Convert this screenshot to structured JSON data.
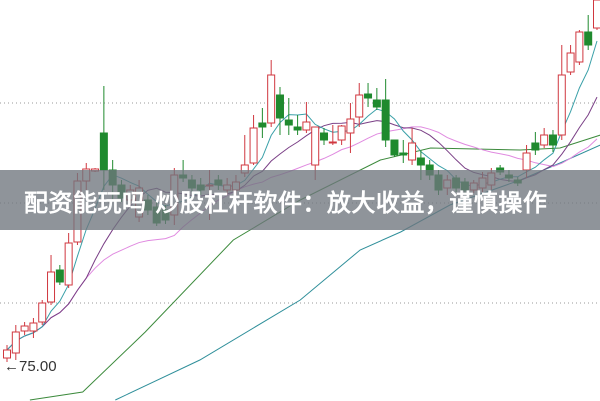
{
  "banner": {
    "title": "配资能玩吗 炒股杠杆软件：放大收益，谨慎操作"
  },
  "chart_data": {
    "type": "candlestick",
    "title": "",
    "xlabel": "",
    "ylabel": "",
    "ylim": [
      71.7,
      111.8
    ],
    "grid": true,
    "gridlines": [
      101.5,
      91.5,
      81.5
    ],
    "colors": {
      "up": "#d0373f",
      "down": "#1f8a2e",
      "ma5": "#3aa0a8",
      "ma10": "#7a3f86",
      "ma20": "#e08ae0",
      "ma60": "#3c8a3c",
      "ma120": "#2f8f9a",
      "grid": "#9a9a9a"
    },
    "low_marker": {
      "label": "75.00",
      "value": 75.0,
      "arrow": "left"
    },
    "candles": [
      [
        76.0,
        77.3,
        75.6,
        76.8
      ],
      [
        76.5,
        79.3,
        75.8,
        78.6
      ],
      [
        78.7,
        79.6,
        78.3,
        79.2
      ],
      [
        78.7,
        80.0,
        78.0,
        79.5
      ],
      [
        79.6,
        81.8,
        79.3,
        81.5
      ],
      [
        81.6,
        86.3,
        81.3,
        84.6
      ],
      [
        84.8,
        85.3,
        83.3,
        83.6
      ],
      [
        83.3,
        88.5,
        83.0,
        87.5
      ],
      [
        87.6,
        94.5,
        87.3,
        93.7
      ],
      [
        93.7,
        95.5,
        92.8,
        94.9
      ],
      [
        94.7,
        95.0,
        94.6,
        94.9
      ],
      [
        98.5,
        103.2,
        92.8,
        94.8
      ],
      [
        94.8,
        95.8,
        91.8,
        93.3
      ],
      [
        93.3,
        93.8,
        91.6,
        92.0
      ],
      [
        91.8,
        93.3,
        91.3,
        92.8
      ],
      [
        90.1,
        93.8,
        89.6,
        93.0
      ],
      [
        91.8,
        92.3,
        90.3,
        90.8
      ],
      [
        91.1,
        91.8,
        89.2,
        89.5
      ],
      [
        90.8,
        91.3,
        89.4,
        89.8
      ],
      [
        90.3,
        95.0,
        89.3,
        94.3
      ],
      [
        94.3,
        95.8,
        93.6,
        94.0
      ],
      [
        93.8,
        94.3,
        92.6,
        93.0
      ],
      [
        93.3,
        94.0,
        92.3,
        92.8
      ],
      [
        93.2,
        94.8,
        89.8,
        93.3
      ],
      [
        93.8,
        94.3,
        92.8,
        93.3
      ],
      [
        92.8,
        94.0,
        92.3,
        93.3
      ],
      [
        92.8,
        94.3,
        92.3,
        93.6
      ],
      [
        94.5,
        98.3,
        94.1,
        95.3
      ],
      [
        95.5,
        100.3,
        95.3,
        99.0
      ],
      [
        99.5,
        101.0,
        98.0,
        99.1
      ],
      [
        99.5,
        105.8,
        99.1,
        104.3
      ],
      [
        102.3,
        103.1,
        98.3,
        100.0
      ],
      [
        99.8,
        102.0,
        98.3,
        99.3
      ],
      [
        99.1,
        100.3,
        98.3,
        98.8
      ],
      [
        98.8,
        101.6,
        98.5,
        99.6
      ],
      [
        95.3,
        99.1,
        93.8,
        99.1
      ],
      [
        98.5,
        99.0,
        97.3,
        97.8
      ],
      [
        97.5,
        99.3,
        97.3,
        97.6
      ],
      [
        97.8,
        99.3,
        97.3,
        99.2
      ],
      [
        98.5,
        101.5,
        96.5,
        99.9
      ],
      [
        100.1,
        103.5,
        99.1,
        102.3
      ],
      [
        102.4,
        103.5,
        101.1,
        102.0
      ],
      [
        101.8,
        103.0,
        100.8,
        101.1
      ],
      [
        101.8,
        103.9,
        97.1,
        97.8
      ],
      [
        97.8,
        97.8,
        96.1,
        96.3
      ],
      [
        96.5,
        97.8,
        95.5,
        96.3
      ],
      [
        95.8,
        99.0,
        95.3,
        97.5
      ],
      [
        96.0,
        96.8,
        93.8,
        95.3
      ],
      [
        95.3,
        95.8,
        93.8,
        94.3
      ],
      [
        94.3,
        94.8,
        92.3,
        92.8
      ],
      [
        93.0,
        94.3,
        92.3,
        93.8
      ],
      [
        94.0,
        94.3,
        92.6,
        93.0
      ],
      [
        93.6,
        94.0,
        92.3,
        92.8
      ],
      [
        92.8,
        93.8,
        92.5,
        93.5
      ],
      [
        93.0,
        94.6,
        92.6,
        94.0
      ],
      [
        93.3,
        95.0,
        92.8,
        94.5
      ],
      [
        95.0,
        95.3,
        94.3,
        94.6
      ],
      [
        94.3,
        94.8,
        93.6,
        94.0
      ],
      [
        93.8,
        94.1,
        93.2,
        93.5
      ],
      [
        94.8,
        97.3,
        94.0,
        96.5
      ],
      [
        97.5,
        98.6,
        96.3,
        96.8
      ],
      [
        97.3,
        99.0,
        97.0,
        98.3
      ],
      [
        98.3,
        98.8,
        96.6,
        97.3
      ],
      [
        98.3,
        107.3,
        97.8,
        104.3
      ],
      [
        104.6,
        107.3,
        104.3,
        106.5
      ],
      [
        105.6,
        108.8,
        105.3,
        108.6
      ],
      [
        108.6,
        110.3,
        106.8,
        107.3
      ],
      [
        109.0,
        111.8,
        108.8,
        111.8
      ]
    ],
    "ma60": [
      [
        2.6,
        71.8
      ],
      [
        8.6,
        72.6
      ],
      [
        15.7,
        78.6
      ],
      [
        25.7,
        87.8
      ],
      [
        33.3,
        91.8
      ],
      [
        42.4,
        95.8
      ],
      [
        48.1,
        97.0
      ],
      [
        58.3,
        96.8
      ],
      [
        62.8,
        97.0
      ],
      [
        67.4,
        98.3
      ]
    ],
    "ma120": [
      [
        12.3,
        71.8
      ],
      [
        21.9,
        75.8
      ],
      [
        33.3,
        81.8
      ],
      [
        40.1,
        86.8
      ],
      [
        44.7,
        88.6
      ],
      [
        50.3,
        91.3
      ],
      [
        58.3,
        93.8
      ],
      [
        62.8,
        95.5
      ],
      [
        67.4,
        97.3
      ]
    ]
  }
}
